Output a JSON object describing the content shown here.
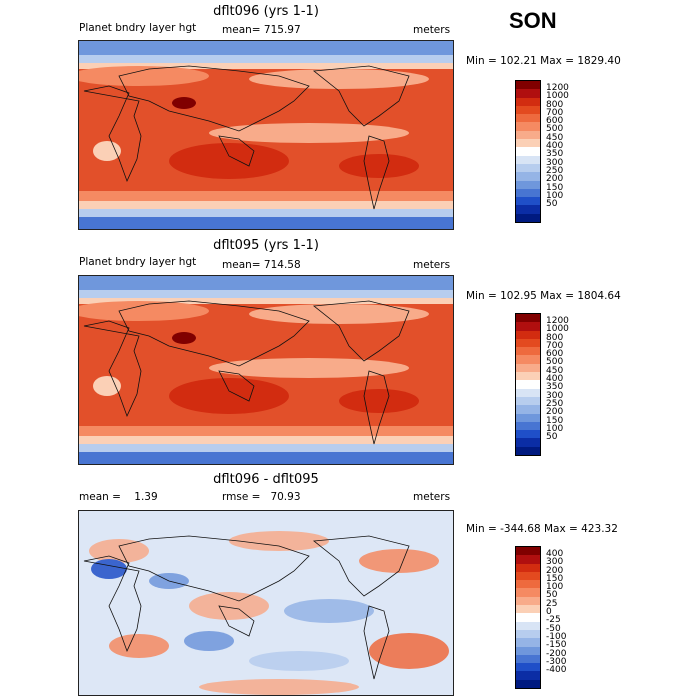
{
  "season": "SON",
  "panels": [
    {
      "title": "dflt096 (yrs 1-1)",
      "left_label": "Planet bndry layer hgt",
      "mean_label": "mean= 715.97",
      "units": "meters",
      "minmax": "Min = 102.21 Max = 1829.40"
    },
    {
      "title": "dflt095 (yrs 1-1)",
      "left_label": "Planet bndry layer hgt",
      "mean_label": "mean= 714.58",
      "units": "meters",
      "minmax": "Min = 102.95 Max = 1804.64"
    },
    {
      "title": "dflt096 - dflt095",
      "left_label": "mean =    1.39",
      "mean_label": "rmse =   70.93",
      "units": "meters",
      "minmax": "Min = -344.68 Max = 423.32"
    }
  ],
  "colorbars": {
    "absolute": {
      "labels": [
        "1200",
        "1000",
        "800",
        "700",
        "600",
        "500",
        "450",
        "400",
        "350",
        "300",
        "250",
        "200",
        "150",
        "100",
        "50"
      ],
      "colors": [
        "#800000",
        "#b00f0f",
        "#d22c10",
        "#e34a1f",
        "#ee6a3e",
        "#f58a62",
        "#f8ab8a",
        "#fbd0b6",
        "#ffffff",
        "#d8e4f5",
        "#b7cdee",
        "#95b4e6",
        "#6f97dc",
        "#4875d2",
        "#1f4fc8",
        "#0b2da5",
        "#001a80"
      ]
    },
    "difference": {
      "labels": [
        "400",
        "300",
        "200",
        "150",
        "100",
        "50",
        "25",
        "0",
        "-25",
        "-50",
        "-100",
        "-150",
        "-200",
        "-300",
        "-400"
      ],
      "colors": [
        "#800000",
        "#b00f0f",
        "#d22c10",
        "#e34a1f",
        "#ee6a3e",
        "#f58a62",
        "#f8ab8a",
        "#fbd0b6",
        "#ffffff",
        "#d8e4f5",
        "#b7cdee",
        "#95b4e6",
        "#6f97dc",
        "#4875d2",
        "#1f4fc8",
        "#0b2da5",
        "#001a80"
      ]
    }
  }
}
